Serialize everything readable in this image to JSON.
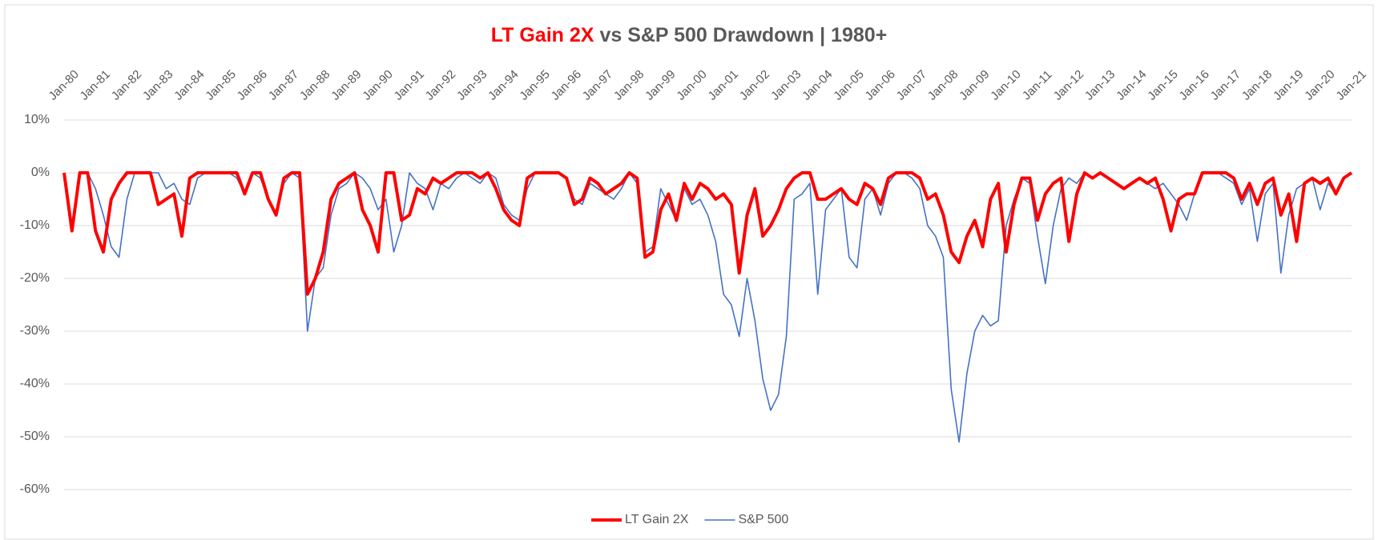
{
  "chart_data": {
    "type": "line",
    "title": {
      "highlight": "LT Gain 2X",
      "rest": "vs S&P 500 Drawdown | 1980+"
    },
    "categories": [
      "Jan-80",
      null,
      null,
      null,
      "Jan-81",
      null,
      null,
      null,
      "Jan-82",
      null,
      null,
      null,
      "Jan-83",
      null,
      null,
      null,
      "Jan-84",
      null,
      null,
      null,
      "Jan-85",
      null,
      null,
      null,
      "Jan-86",
      null,
      null,
      null,
      "Jan-87",
      null,
      null,
      null,
      "Jan-88",
      null,
      null,
      null,
      "Jan-89",
      null,
      null,
      null,
      "Jan-90",
      null,
      null,
      null,
      "Jan-91",
      null,
      null,
      null,
      "Jan-92",
      null,
      null,
      null,
      "Jan-93",
      null,
      null,
      null,
      "Jan-94",
      null,
      null,
      null,
      "Jan-95",
      null,
      null,
      null,
      "Jan-96",
      null,
      null,
      null,
      "Jan-97",
      null,
      null,
      null,
      "Jan-98",
      null,
      null,
      null,
      "Jan-99",
      null,
      null,
      null,
      "Jan-00",
      null,
      null,
      null,
      "Jan-01",
      null,
      null,
      null,
      "Jan-02",
      null,
      null,
      null,
      "Jan-03",
      null,
      null,
      null,
      "Jan-04",
      null,
      null,
      null,
      "Jan-05",
      null,
      null,
      null,
      "Jan-06",
      null,
      null,
      null,
      "Jan-07",
      null,
      null,
      null,
      "Jan-08",
      null,
      null,
      null,
      "Jan-09",
      null,
      null,
      null,
      "Jan-10",
      null,
      null,
      null,
      "Jan-11",
      null,
      null,
      null,
      "Jan-12",
      null,
      null,
      null,
      "Jan-13",
      null,
      null,
      null,
      "Jan-14",
      null,
      null,
      null,
      "Jan-15",
      null,
      null,
      null,
      "Jan-16",
      null,
      null,
      null,
      "Jan-17",
      null,
      null,
      null,
      "Jan-18",
      null,
      null,
      null,
      "Jan-19",
      null,
      null,
      null,
      "Jan-20",
      null,
      null,
      null,
      "Jan-21"
    ],
    "series": [
      {
        "name": "LT Gain 2X",
        "color": "#ff0000",
        "width": 4,
        "values": [
          0,
          -11,
          0,
          0,
          -11,
          -15,
          -5,
          -2,
          0,
          0,
          0,
          0,
          -6,
          -5,
          -4,
          -12,
          -1,
          0,
          0,
          0,
          0,
          0,
          0,
          -4,
          0,
          0,
          -5,
          -8,
          -1,
          0,
          0,
          -23,
          -20,
          -15,
          -5,
          -2,
          -1,
          0,
          -7,
          -10,
          -15,
          0,
          0,
          -9,
          -8,
          -3,
          -4,
          -1,
          -2,
          -1,
          0,
          0,
          0,
          -1,
          0,
          -3,
          -7,
          -9,
          -10,
          -1,
          0,
          0,
          0,
          0,
          -1,
          -6,
          -5,
          -1,
          -2,
          -4,
          -3,
          -2,
          0,
          -1,
          -16,
          -15,
          -7,
          -4,
          -9,
          -2,
          -5,
          -2,
          -3,
          -5,
          -4,
          -6,
          -19,
          -8,
          -3,
          -12,
          -10,
          -7,
          -3,
          -1,
          0,
          0,
          -5,
          -5,
          -4,
          -3,
          -5,
          -6,
          -2,
          -3,
          -6,
          -1,
          0,
          0,
          0,
          -1,
          -5,
          -4,
          -8,
          -15,
          -17,
          -12,
          -9,
          -14,
          -5,
          -2,
          -15,
          -6,
          -1,
          -1,
          -9,
          -4,
          -2,
          -1,
          -13,
          -4,
          0,
          -1,
          0,
          -1,
          -2,
          -3,
          -2,
          -1,
          -2,
          -1,
          -5,
          -11,
          -5,
          -4,
          -4,
          0,
          0,
          0,
          0,
          -1,
          -5,
          -2,
          -6,
          -2,
          -1,
          -8,
          -4,
          -13,
          -2,
          -1,
          -2,
          -1,
          -4,
          -1,
          0
        ]
      },
      {
        "name": "S&P 500",
        "color": "#4472c4",
        "width": 1.6,
        "values": [
          0,
          -10,
          0,
          0,
          -3,
          -8,
          -14,
          -16,
          -5,
          0,
          0,
          0,
          0,
          -3,
          -2,
          -5,
          -6,
          -1,
          0,
          0,
          0,
          0,
          -1,
          -4,
          0,
          -1,
          -5,
          -8,
          -2,
          0,
          -1,
          -30,
          -20,
          -18,
          -8,
          -3,
          -2,
          0,
          -1,
          -3,
          -7,
          -5,
          -15,
          -10,
          0,
          -2,
          -3,
          -7,
          -2,
          -3,
          -1,
          0,
          -1,
          -2,
          0,
          -1,
          -6,
          -8,
          -9,
          -3,
          0,
          0,
          0,
          0,
          -1,
          -5,
          -6,
          -2,
          -3,
          -4,
          -5,
          -3,
          0,
          -2,
          -15,
          -14,
          -3,
          -6,
          -9,
          -3,
          -6,
          -5,
          -8,
          -13,
          -23,
          -25,
          -31,
          -20,
          -28,
          -39,
          -45,
          -42,
          -31,
          -5,
          -4,
          -2,
          -23,
          -7,
          -5,
          -3,
          -16,
          -18,
          -5,
          -3,
          -8,
          -2,
          0,
          0,
          -1,
          -3,
          -10,
          -12,
          -16,
          -41,
          -51,
          -38,
          -30,
          -27,
          -29,
          -28,
          -10,
          -5,
          -1,
          -2,
          -12,
          -21,
          -10,
          -3,
          -1,
          -2,
          0,
          -1,
          0,
          -1,
          -2,
          -3,
          -2,
          -1,
          -2,
          -3,
          -2,
          -4,
          -6,
          -9,
          -4,
          0,
          0,
          0,
          -1,
          -2,
          -6,
          -3,
          -13,
          -4,
          -2,
          -19,
          -8,
          -3,
          -2,
          -1,
          -7,
          -2,
          -4,
          -1,
          0
        ]
      }
    ],
    "ylim": [
      -60,
      10
    ],
    "yticks": [
      {
        "value": 10,
        "label": "10%"
      },
      {
        "value": 0,
        "label": "0%"
      },
      {
        "value": -10,
        "label": "-10%"
      },
      {
        "value": -20,
        "label": "-20%"
      },
      {
        "value": -30,
        "label": "-30%"
      },
      {
        "value": -40,
        "label": "-40%"
      },
      {
        "value": -50,
        "label": "-50%"
      },
      {
        "value": -60,
        "label": "-60%"
      }
    ],
    "grid": true,
    "legend": "bottom"
  }
}
